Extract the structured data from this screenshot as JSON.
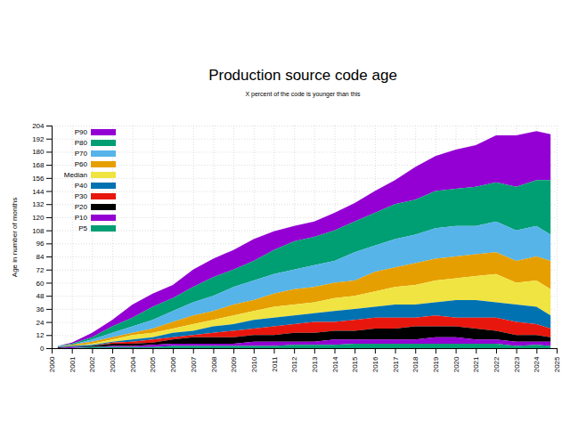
{
  "chart_data": {
    "type": "area",
    "title": "Production source code age",
    "subtitle": "X percent of the code is younger than this",
    "y_label": "Age in number of months",
    "x": [
      2000.3,
      2001,
      2002,
      2003,
      2004,
      2005,
      2006,
      2007,
      2008,
      2009,
      2010,
      2011,
      2012,
      2013,
      2014,
      2015,
      2016,
      2017,
      2018,
      2019,
      2020,
      2021,
      2022,
      2023,
      2024,
      2024.7
    ],
    "series": [
      {
        "name": "P90",
        "color": "#9400d3",
        "values": [
          2,
          5,
          14,
          26,
          40,
          50,
          58,
          72,
          82,
          90,
          100,
          107,
          112,
          116,
          124,
          133,
          144,
          154,
          166,
          176,
          182,
          186,
          195,
          195,
          199,
          196
        ]
      },
      {
        "name": "P80",
        "color": "#009e73",
        "values": [
          2,
          4,
          10,
          20,
          28,
          38,
          46,
          56,
          65,
          72,
          80,
          90,
          98,
          102,
          108,
          116,
          124,
          132,
          136,
          144,
          146,
          148,
          152,
          148,
          154,
          154
        ]
      },
      {
        "name": "P70",
        "color": "#56b4e9",
        "values": [
          2,
          3,
          8,
          14,
          20,
          26,
          34,
          42,
          48,
          56,
          62,
          68,
          72,
          76,
          80,
          88,
          94,
          100,
          104,
          110,
          112,
          112,
          116,
          108,
          112,
          104
        ]
      },
      {
        "name": "P60",
        "color": "#e69f00",
        "values": [
          1,
          3,
          6,
          10,
          14,
          18,
          24,
          30,
          34,
          40,
          44,
          50,
          54,
          56,
          60,
          62,
          70,
          74,
          78,
          82,
          84,
          86,
          88,
          80,
          84,
          80
        ]
      },
      {
        "name": "Median",
        "color": "#f0e442",
        "values": [
          1,
          2,
          4,
          8,
          12,
          14,
          18,
          22,
          26,
          30,
          34,
          38,
          40,
          42,
          46,
          48,
          52,
          56,
          58,
          62,
          64,
          66,
          68,
          60,
          62,
          54
        ]
      },
      {
        "name": "P40",
        "color": "#0072b2",
        "values": [
          1,
          2,
          3,
          6,
          8,
          10,
          14,
          16,
          20,
          22,
          26,
          28,
          30,
          32,
          34,
          36,
          38,
          40,
          40,
          42,
          44,
          44,
          42,
          40,
          38,
          30
        ]
      },
      {
        "name": "P30",
        "color": "#e8170e",
        "values": [
          1,
          1,
          2,
          5,
          6,
          8,
          10,
          12,
          14,
          16,
          18,
          20,
          22,
          24,
          24,
          26,
          28,
          28,
          28,
          30,
          28,
          28,
          28,
          24,
          22,
          18
        ]
      },
      {
        "name": "P20",
        "color": "#000000",
        "values": [
          1,
          1,
          2,
          4,
          4,
          5,
          8,
          10,
          10,
          10,
          12,
          12,
          14,
          14,
          16,
          16,
          18,
          18,
          20,
          20,
          20,
          18,
          16,
          12,
          12,
          10
        ]
      },
      {
        "name": "P10",
        "color": "#9400d3",
        "values": [
          0,
          1,
          1,
          2,
          2,
          3,
          4,
          4,
          4,
          4,
          6,
          6,
          6,
          6,
          8,
          8,
          8,
          8,
          8,
          10,
          10,
          8,
          8,
          6,
          6,
          6
        ]
      },
      {
        "name": "P5",
        "color": "#009e73",
        "values": [
          0,
          0,
          1,
          1,
          1,
          1,
          2,
          2,
          2,
          2,
          2,
          2,
          3,
          3,
          3,
          4,
          4,
          4,
          4,
          4,
          4,
          4,
          4,
          2,
          3,
          2
        ]
      }
    ],
    "xlim": [
      2000,
      2025
    ],
    "xticks": [
      2000,
      2001,
      2002,
      2003,
      2004,
      2005,
      2006,
      2007,
      2008,
      2009,
      2010,
      2011,
      2012,
      2013,
      2014,
      2015,
      2016,
      2017,
      2018,
      2019,
      2020,
      2021,
      2022,
      2023,
      2024,
      2025
    ],
    "ylim": [
      0,
      204
    ],
    "yticks": [
      0,
      12,
      24,
      36,
      48,
      60,
      72,
      84,
      96,
      108,
      120,
      132,
      144,
      156,
      168,
      180,
      192,
      204
    ],
    "grid": true,
    "legend": "top-left"
  }
}
